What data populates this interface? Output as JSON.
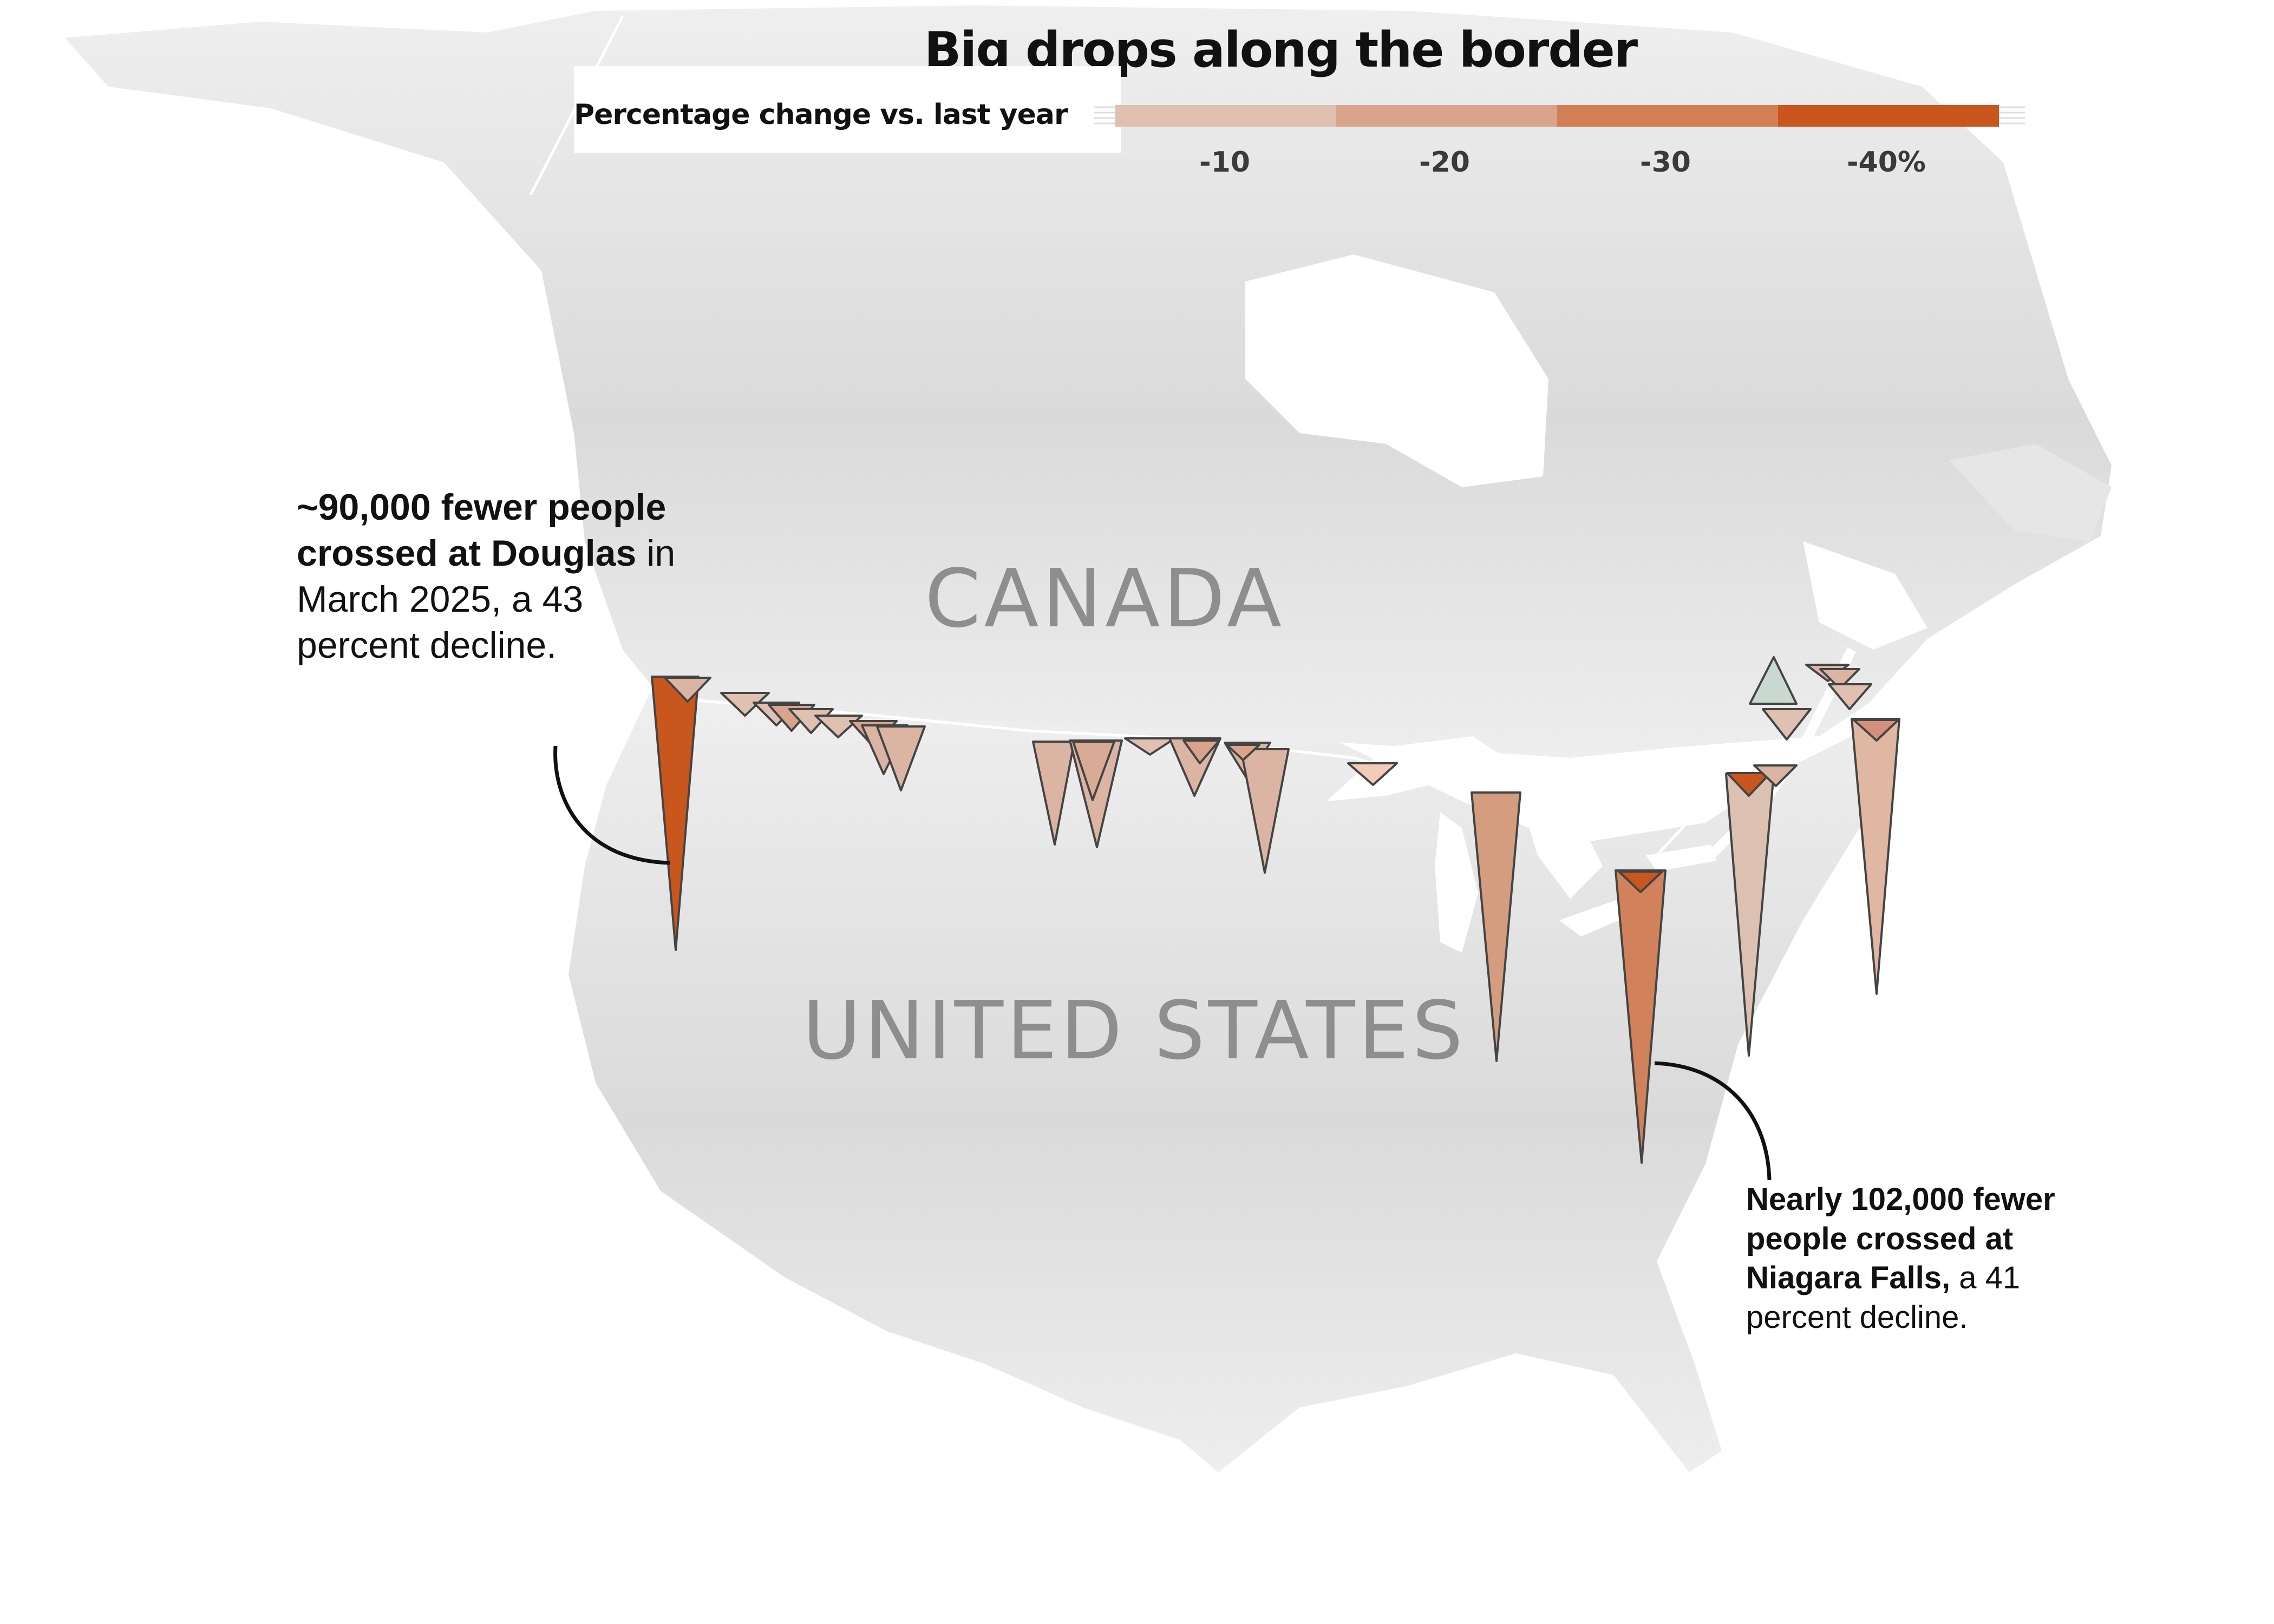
{
  "title": "Big drops along the border",
  "legend": {
    "label": "Percentage change vs. last year",
    "ticks": [
      "-10",
      "-20",
      "-30",
      "-40%"
    ],
    "colors": [
      "#dfc0b1",
      "#daa48c",
      "#d27f56",
      "#c9561d"
    ]
  },
  "map": {
    "countries": {
      "canada": "CANADA",
      "united_states": "UNITED STATES"
    },
    "colors": {
      "land": "#e4e4e4",
      "water": "#ffffff",
      "border_line": "#ffffff",
      "increase": "#c9d9d1",
      "stroke": "#444444"
    }
  },
  "annotations": {
    "douglas": {
      "bold": "~90,000 fewer people crossed at Douglas",
      "rest": " in March 2025, a 43 percent decline."
    },
    "niagara": {
      "bold": "Nearly 102,000 fewer people crossed at Niagara Falls,",
      "rest": " a 41 percent decline."
    }
  }
}
